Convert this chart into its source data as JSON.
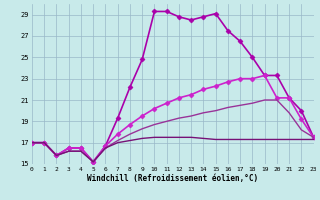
{
  "xlabel": "Windchill (Refroidissement éolien,°C)",
  "xlim": [
    0,
    23
  ],
  "ylim": [
    15,
    30
  ],
  "yticks": [
    15,
    17,
    19,
    21,
    23,
    25,
    27,
    29
  ],
  "xticks": [
    0,
    1,
    2,
    3,
    4,
    5,
    6,
    7,
    8,
    9,
    10,
    11,
    12,
    13,
    14,
    15,
    16,
    17,
    18,
    19,
    20,
    21,
    22,
    23
  ],
  "bg_color": "#c8eaea",
  "grid_color": "#9ab8c8",
  "curves": [
    {
      "x": [
        0,
        1,
        2,
        3,
        4,
        5,
        6,
        7,
        8,
        9,
        10,
        11,
        12,
        13,
        14,
        15,
        16,
        17,
        18,
        19,
        20,
        21,
        22,
        23
      ],
      "y": [
        17,
        17,
        15.8,
        16.5,
        16.5,
        15.2,
        16.7,
        19.3,
        22.2,
        24.8,
        29.3,
        29.3,
        28.8,
        28.5,
        28.8,
        29.1,
        27.5,
        26.5,
        25.0,
        23.3,
        23.3,
        21.2,
        20.0,
        17.5
      ],
      "marker": "D",
      "markersize": 2.5,
      "linewidth": 1.2,
      "color": "#aa00aa"
    },
    {
      "x": [
        0,
        1,
        2,
        3,
        4,
        5,
        6,
        7,
        8,
        9,
        10,
        11,
        12,
        13,
        14,
        15,
        16,
        17,
        18,
        19,
        20,
        21,
        22,
        23
      ],
      "y": [
        17,
        17,
        15.8,
        16.5,
        16.5,
        15.2,
        16.7,
        17.8,
        18.7,
        19.5,
        20.2,
        20.7,
        21.2,
        21.5,
        22.0,
        22.3,
        22.7,
        23.0,
        23.0,
        23.3,
        21.2,
        21.2,
        19.2,
        17.5
      ],
      "marker": "D",
      "markersize": 2.5,
      "linewidth": 1.2,
      "color": "#cc22cc"
    },
    {
      "x": [
        0,
        1,
        2,
        3,
        4,
        5,
        6,
        7,
        8,
        9,
        10,
        11,
        12,
        13,
        14,
        15,
        16,
        17,
        18,
        19,
        20,
        21,
        22,
        23
      ],
      "y": [
        17,
        17,
        15.8,
        16.2,
        16.2,
        15.2,
        16.5,
        17.2,
        17.8,
        18.3,
        18.7,
        19.0,
        19.3,
        19.5,
        19.8,
        20.0,
        20.3,
        20.5,
        20.7,
        21.0,
        21.0,
        19.8,
        18.2,
        17.5
      ],
      "marker": null,
      "linewidth": 1.0,
      "color": "#993399"
    },
    {
      "x": [
        0,
        1,
        2,
        3,
        4,
        5,
        6,
        7,
        8,
        9,
        10,
        11,
        12,
        13,
        14,
        15,
        16,
        17,
        18,
        19,
        20,
        21,
        22,
        23
      ],
      "y": [
        17,
        17,
        15.8,
        16.2,
        16.2,
        15.2,
        16.5,
        17.0,
        17.2,
        17.4,
        17.5,
        17.5,
        17.5,
        17.5,
        17.4,
        17.3,
        17.3,
        17.3,
        17.3,
        17.3,
        17.3,
        17.3,
        17.3,
        17.3
      ],
      "marker": null,
      "linewidth": 1.0,
      "color": "#771177"
    }
  ]
}
